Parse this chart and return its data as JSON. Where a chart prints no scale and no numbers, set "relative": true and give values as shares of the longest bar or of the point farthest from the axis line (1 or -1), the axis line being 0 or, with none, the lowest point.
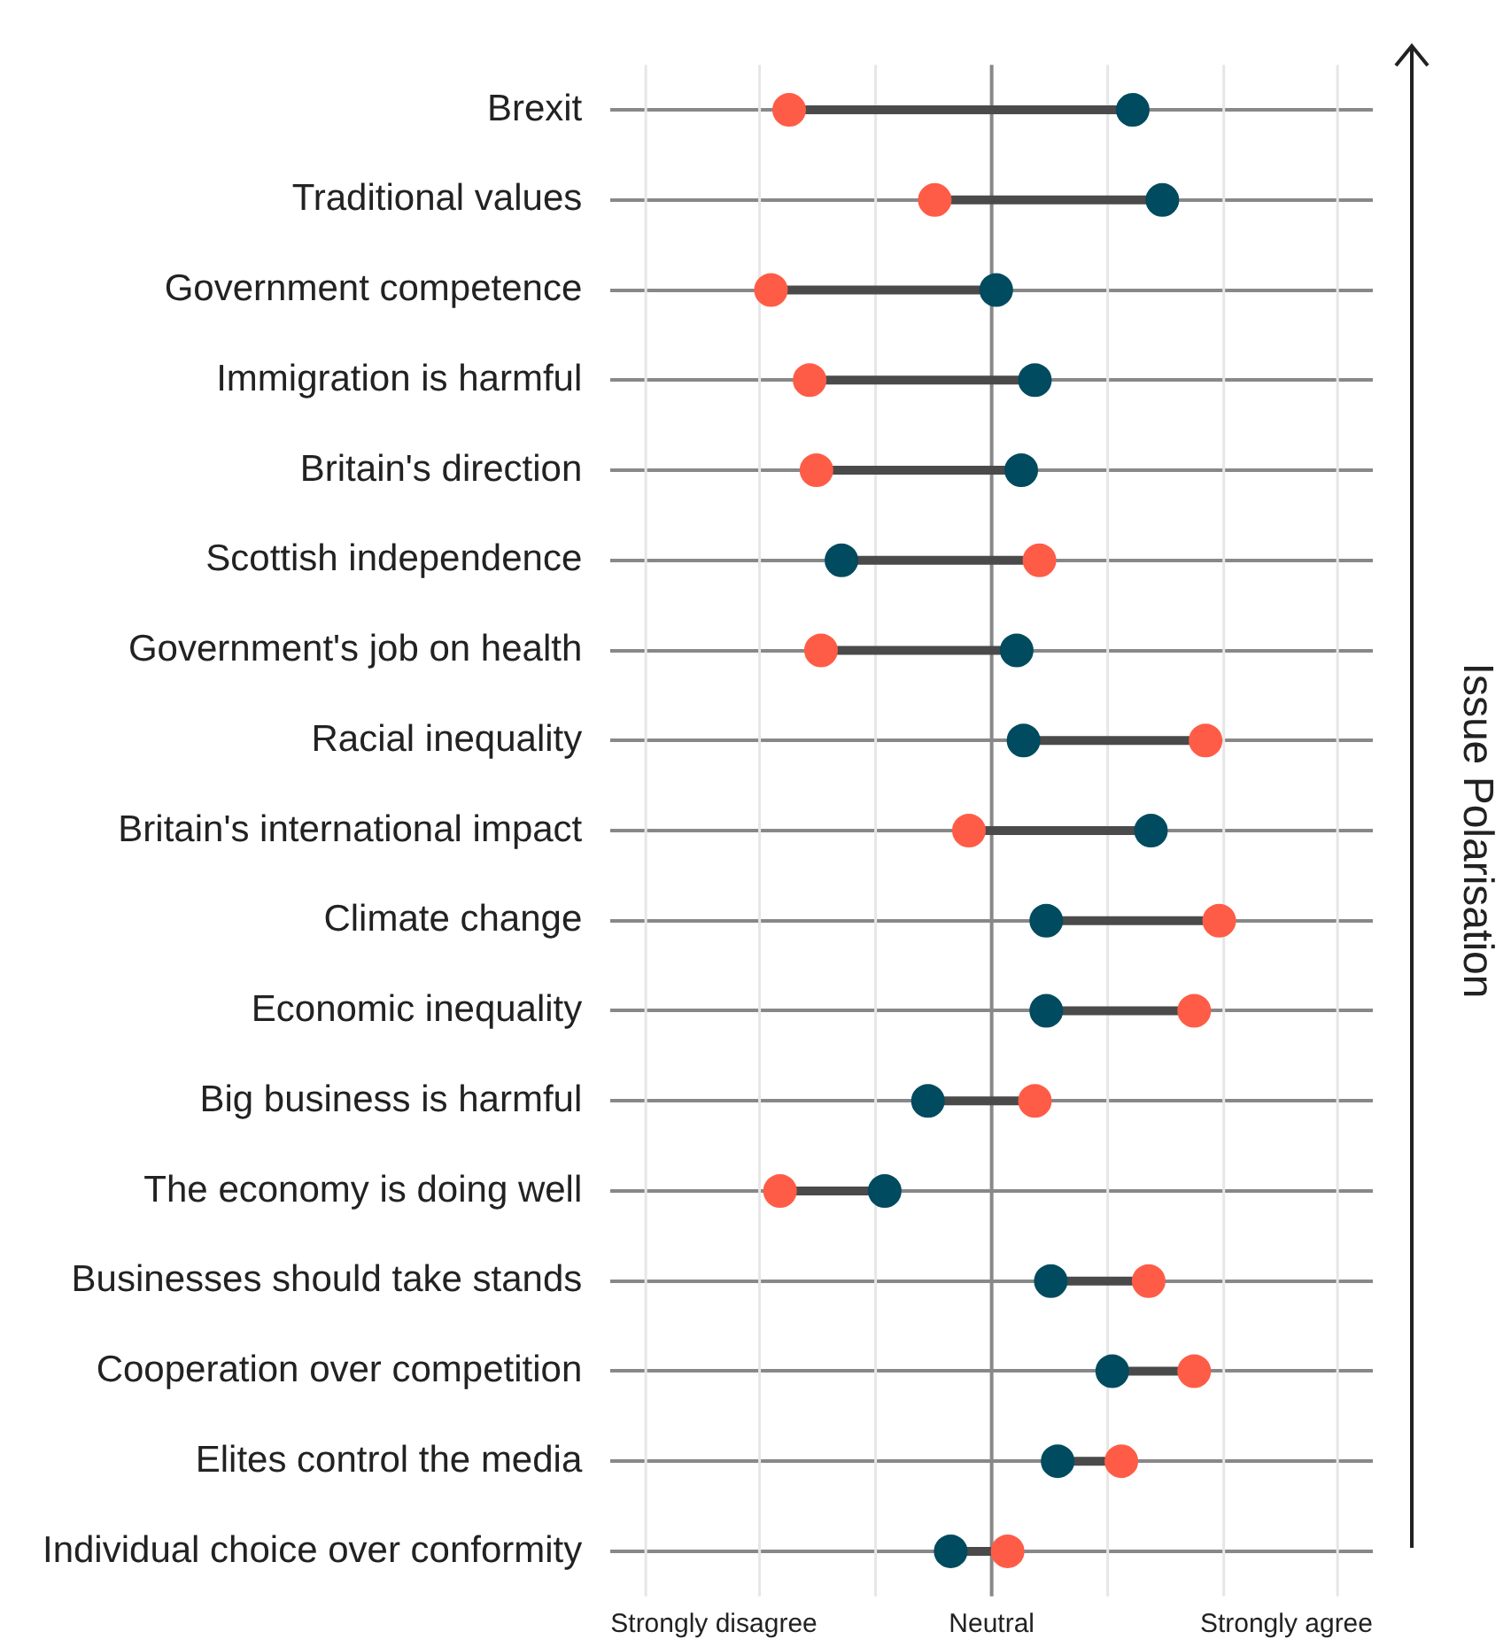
{
  "chart_data": {
    "type": "scatter",
    "orientation": "horizontal",
    "relative": true,
    "categories": [
      "Brexit",
      "Traditional values",
      "Government competence",
      "Immigration is harmful",
      "Britain's direction",
      "Scottish independence",
      "Government's job on health",
      "Racial inequality",
      "Britain's international impact",
      "Climate change",
      "Economic inequality",
      "Big business is harmful",
      "The economy is doing well",
      "Businesses should take stands",
      "Cooperation over competition",
      "Elites control the media",
      "Individual choice over conformity"
    ],
    "annotations": [
      "Strongly disagree",
      "Neutral",
      "Strongly agree",
      "Issue Polarisation"
    ],
    "grid": "y",
    "marker": "circle",
    "ref_lines": [
      {
        "axis": "x",
        "value": -1.52,
        "color": "#e6e6e6"
      },
      {
        "axis": "x",
        "value": -1.02,
        "color": "#e6e6e6"
      },
      {
        "axis": "x",
        "value": -0.51,
        "color": "#e6e6e6"
      },
      {
        "axis": "x",
        "value": 0,
        "color": "#888888"
      },
      {
        "axis": "x",
        "value": 0.51,
        "color": "#e6e6e6"
      },
      {
        "axis": "x",
        "value": 1.02,
        "color": "#e6e6e6"
      },
      {
        "axis": "x",
        "value": 1.52,
        "color": "#e6e6e6"
      }
    ],
    "series": [
      {
        "color": "#ff5c47",
        "values": [
          -0.89,
          -0.25,
          -0.97,
          -0.8,
          -0.77,
          0.21,
          -0.75,
          0.94,
          -0.1,
          1,
          0.89,
          0.19,
          -0.93,
          0.69,
          0.89,
          0.57,
          0.07
        ]
      },
      {
        "color": "#004b5f",
        "values": [
          0.62,
          0.75,
          0.02,
          0.19,
          0.13,
          -0.66,
          0.11,
          0.14,
          0.7,
          0.24,
          0.24,
          -0.28,
          -0.47,
          0.26,
          0.53,
          0.29,
          -0.18
        ]
      }
    ]
  }
}
